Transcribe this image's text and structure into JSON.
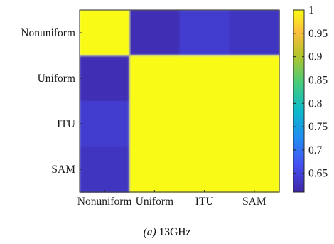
{
  "chart_data": {
    "type": "heatmap",
    "title": "",
    "xlabel": "",
    "ylabel": "",
    "categories": [
      "Nonuniform",
      "Uniform",
      "ITU",
      "SAM"
    ],
    "x_categories": [
      "Nonuniform",
      "Uniform",
      "ITU",
      "SAM"
    ],
    "y_categories": [
      "Nonuniform",
      "Uniform",
      "ITU",
      "SAM"
    ],
    "matrix": [
      [
        1.0,
        0.62,
        0.64,
        0.63
      ],
      [
        0.62,
        1.0,
        1.0,
        1.0
      ],
      [
        0.64,
        1.0,
        1.0,
        1.0
      ],
      [
        0.63,
        1.0,
        1.0,
        1.0
      ]
    ],
    "colormap": "parula",
    "clim": [
      0.61,
      1.0
    ],
    "colorbar": {
      "ticks": [
        0.65,
        0.7,
        0.75,
        0.8,
        0.85,
        0.9,
        0.95,
        1
      ],
      "tick_labels": [
        "0.65",
        "0.7",
        "0.75",
        "0.8",
        "0.85",
        "0.9",
        "0.95",
        "1"
      ],
      "placement": "right"
    },
    "grid": false
  },
  "caption": {
    "label": "(a)",
    "text": " 13GHz"
  }
}
